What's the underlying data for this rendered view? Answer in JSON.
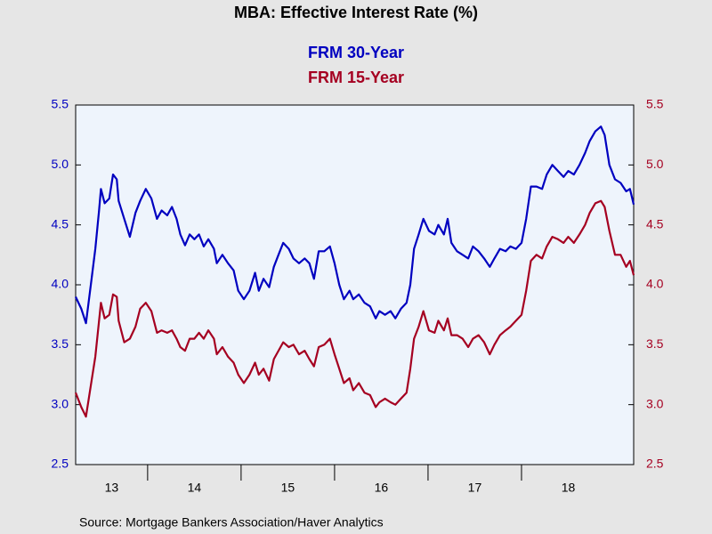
{
  "chart_data": {
    "type": "line",
    "title": "MBA: Effective Interest Rate (%)",
    "source": "Source:  Mortgage Bankers Association/Haver Analytics",
    "x": [
      2013.23,
      2013.29,
      2013.34,
      2013.4,
      2013.44,
      2013.48,
      2013.5,
      2013.54,
      2013.59,
      2013.63,
      2013.67,
      2013.69,
      2013.75,
      2013.81,
      2013.87,
      2013.92,
      2013.98,
      2014.04,
      2014.1,
      2014.15,
      2014.21,
      2014.26,
      2014.31,
      2014.35,
      2014.4,
      2014.45,
      2014.5,
      2014.55,
      2014.6,
      2014.65,
      2014.71,
      2014.74,
      2014.8,
      2014.86,
      2014.92,
      2014.97,
      2015.03,
      2015.09,
      2015.15,
      2015.19,
      2015.24,
      2015.3,
      2015.35,
      2015.4,
      2015.45,
      2015.51,
      2015.56,
      2015.62,
      2015.68,
      2015.73,
      2015.78,
      2015.83,
      2015.89,
      2015.95,
      2016.0,
      2016.05,
      2016.1,
      2016.16,
      2016.2,
      2016.26,
      2016.32,
      2016.38,
      2016.44,
      2016.48,
      2016.54,
      2016.6,
      2016.65,
      2016.71,
      2016.77,
      2016.81,
      2016.85,
      2016.9,
      2016.95,
      2017.01,
      2017.07,
      2017.11,
      2017.17,
      2017.21,
      2017.25,
      2017.31,
      2017.37,
      2017.43,
      2017.48,
      2017.54,
      2017.6,
      2017.66,
      2017.71,
      2017.77,
      2017.83,
      2017.88,
      2017.94,
      2018.0,
      2018.05,
      2018.1,
      2018.16,
      2018.22,
      2018.27,
      2018.33,
      2018.39,
      2018.45,
      2018.5,
      2018.56,
      2018.62,
      2018.68,
      2018.73,
      2018.79,
      2018.85,
      2018.89,
      2018.94,
      2019.0,
      2019.06,
      2019.12,
      2019.16,
      2019.2
    ],
    "series": [
      {
        "name": "FRM 30-Year",
        "color": "#0000c0",
        "axis": "y",
        "values": [
          3.9,
          3.8,
          3.68,
          4.05,
          4.3,
          4.62,
          4.8,
          4.68,
          4.72,
          4.92,
          4.88,
          4.7,
          4.55,
          4.4,
          4.6,
          4.7,
          4.8,
          4.72,
          4.55,
          4.62,
          4.58,
          4.65,
          4.55,
          4.42,
          4.33,
          4.42,
          4.38,
          4.42,
          4.32,
          4.38,
          4.3,
          4.18,
          4.25,
          4.18,
          4.12,
          3.95,
          3.88,
          3.95,
          4.1,
          3.95,
          4.05,
          3.98,
          4.15,
          4.25,
          4.35,
          4.3,
          4.22,
          4.18,
          4.22,
          4.18,
          4.05,
          4.28,
          4.28,
          4.32,
          4.18,
          4.0,
          3.88,
          3.95,
          3.88,
          3.92,
          3.85,
          3.82,
          3.72,
          3.78,
          3.75,
          3.78,
          3.72,
          3.8,
          3.85,
          4.0,
          4.3,
          4.42,
          4.55,
          4.45,
          4.42,
          4.5,
          4.42,
          4.55,
          4.35,
          4.28,
          4.25,
          4.22,
          4.32,
          4.28,
          4.22,
          4.15,
          4.22,
          4.3,
          4.28,
          4.32,
          4.3,
          4.35,
          4.55,
          4.82,
          4.82,
          4.8,
          4.92,
          5.0,
          4.95,
          4.9,
          4.95,
          4.92,
          5.0,
          5.1,
          5.2,
          5.28,
          5.32,
          5.25,
          5.0,
          4.88,
          4.85,
          4.78,
          4.8,
          4.67
        ]
      },
      {
        "name": "FRM 15-Year",
        "color": "#a50021",
        "axis": "y2",
        "values": [
          3.1,
          2.98,
          2.9,
          3.2,
          3.4,
          3.7,
          3.85,
          3.72,
          3.75,
          3.92,
          3.9,
          3.7,
          3.52,
          3.55,
          3.65,
          3.8,
          3.85,
          3.78,
          3.6,
          3.62,
          3.6,
          3.62,
          3.55,
          3.48,
          3.45,
          3.55,
          3.55,
          3.6,
          3.55,
          3.62,
          3.55,
          3.42,
          3.48,
          3.4,
          3.35,
          3.25,
          3.18,
          3.25,
          3.35,
          3.25,
          3.3,
          3.2,
          3.38,
          3.45,
          3.52,
          3.48,
          3.5,
          3.42,
          3.45,
          3.38,
          3.32,
          3.48,
          3.5,
          3.55,
          3.42,
          3.3,
          3.18,
          3.22,
          3.12,
          3.18,
          3.1,
          3.08,
          2.98,
          3.02,
          3.05,
          3.02,
          3.0,
          3.05,
          3.1,
          3.3,
          3.55,
          3.65,
          3.78,
          3.62,
          3.6,
          3.7,
          3.62,
          3.72,
          3.58,
          3.58,
          3.55,
          3.48,
          3.55,
          3.58,
          3.52,
          3.42,
          3.5,
          3.58,
          3.62,
          3.65,
          3.7,
          3.75,
          3.95,
          4.2,
          4.25,
          4.22,
          4.32,
          4.4,
          4.38,
          4.35,
          4.4,
          4.35,
          4.42,
          4.5,
          4.6,
          4.68,
          4.7,
          4.65,
          4.45,
          4.25,
          4.25,
          4.15,
          4.2,
          4.08
        ]
      }
    ],
    "xlim": [
      2013.23,
      2019.2
    ],
    "xticks": [
      {
        "value": 2013,
        "label": "13"
      },
      {
        "value": 2014,
        "label": "14"
      },
      {
        "value": 2015,
        "label": "15"
      },
      {
        "value": 2016,
        "label": "16"
      },
      {
        "value": 2017,
        "label": "17"
      },
      {
        "value": 2018,
        "label": "18"
      }
    ],
    "ylim": [
      2.5,
      5.5
    ],
    "yticks": [
      2.5,
      {
        "value": 3,
        "label": "3.0"
      },
      3.5,
      {
        "value": 4,
        "label": "4.0"
      },
      4.5,
      {
        "value": 5,
        "label": "5.0"
      },
      5.5
    ],
    "y2lim": [
      2.5,
      5.5
    ],
    "y2ticks": [
      2.5,
      {
        "value": 3,
        "label": "3.0"
      },
      3.5,
      {
        "value": 4,
        "label": "4.0"
      },
      4.5,
      {
        "value": 5,
        "label": "5.0"
      },
      5.5
    ]
  }
}
